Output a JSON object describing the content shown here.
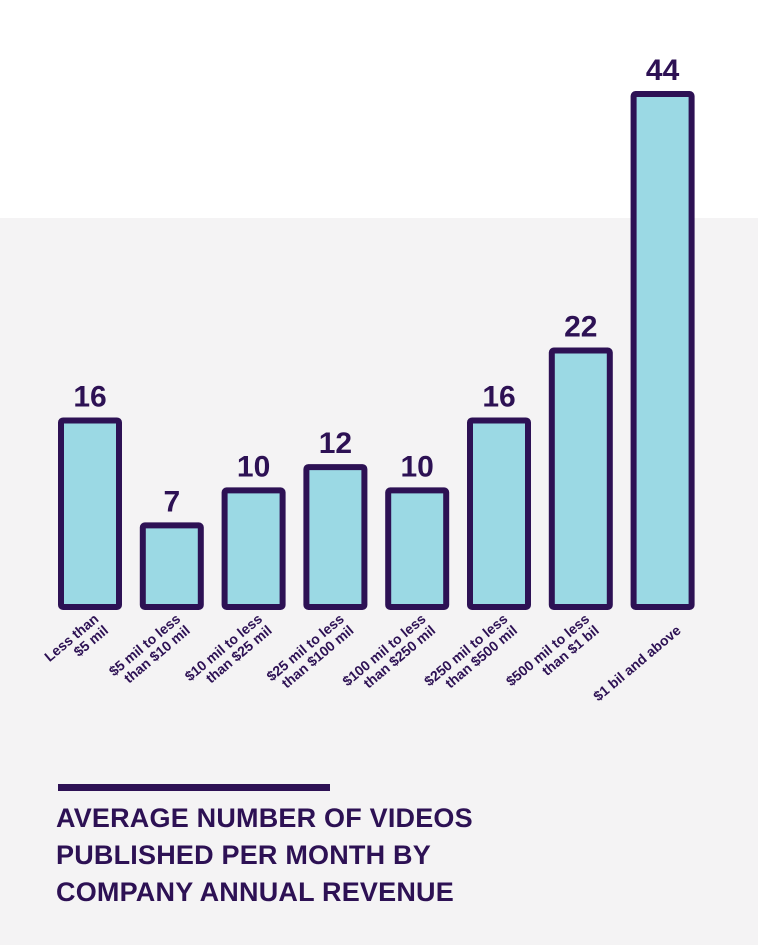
{
  "colors": {
    "bar_fill": "#9bd9e4",
    "bar_stroke": "#2d1154",
    "text": "#2d1154",
    "panel_background": "#f4f3f4"
  },
  "title_lines": [
    "AVERAGE NUMBER OF VIDEOS",
    "PUBLISHED PER MONTH BY",
    "COMPANY ANNUAL REVENUE"
  ],
  "chart_data": {
    "type": "bar",
    "title": "AVERAGE NUMBER OF VIDEOS PUBLISHED PER MONTH BY COMPANY ANNUAL REVENUE",
    "xlabel": "",
    "ylabel": "",
    "grid": false,
    "categories": [
      [
        "Less than",
        "$5 mil"
      ],
      [
        "$5 mil to less",
        "than $10 mil"
      ],
      [
        "$10 mil to less",
        "than $25 mil"
      ],
      [
        "$25 mil to less",
        "than $100 mil"
      ],
      [
        "$100 mil to less",
        "than $250 mil"
      ],
      [
        "$250 mil to less",
        "than $500 mil"
      ],
      [
        "$500 mil to less",
        "than $1 bil"
      ],
      [
        "$1 bil and above"
      ]
    ],
    "values": [
      16,
      7,
      10,
      12,
      10,
      16,
      22,
      44
    ],
    "data_labels": [
      "16",
      "7",
      "10",
      "12",
      "10",
      "16",
      "22",
      "44"
    ],
    "ylim": [
      0,
      44
    ]
  }
}
